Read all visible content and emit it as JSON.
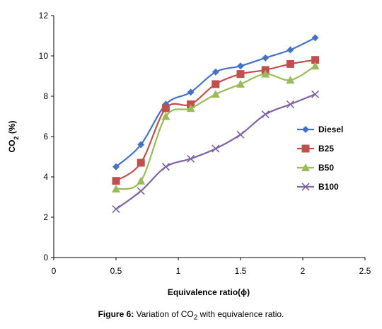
{
  "chart_data": {
    "type": "line",
    "xlabel": "Equivalence ratio(ϕ)",
    "ylabel_main": "CO",
    "ylabel_sub": "2",
    "ylabel_tail": " (%)",
    "xlim": [
      0,
      2.5
    ],
    "ylim": [
      0,
      12
    ],
    "x_ticks": [
      "0",
      "0.5",
      "1",
      "1.5",
      "2",
      "2.5"
    ],
    "y_ticks": [
      "0",
      "2",
      "4",
      "6",
      "8",
      "10",
      "12"
    ],
    "x": [
      0.5,
      0.7,
      0.9,
      1.1,
      1.3,
      1.5,
      1.7,
      1.9,
      2.1
    ],
    "grid": false,
    "legend_position": "right",
    "series": [
      {
        "name": "Diesel",
        "color": "#4472C4",
        "marker": "diamond",
        "values": [
          4.5,
          5.6,
          7.6,
          8.2,
          9.2,
          9.5,
          9.9,
          10.3,
          10.9
        ]
      },
      {
        "name": "B25",
        "color": "#C0504D",
        "marker": "square",
        "values": [
          3.8,
          4.7,
          7.4,
          7.6,
          8.6,
          9.1,
          9.3,
          9.6,
          9.8
        ]
      },
      {
        "name": "B50",
        "color": "#9BBB59",
        "marker": "triangle",
        "values": [
          3.4,
          3.8,
          7.0,
          7.4,
          8.1,
          8.6,
          9.1,
          8.8,
          9.5
        ]
      },
      {
        "name": "B100",
        "color": "#8064A2",
        "marker": "cross",
        "values": [
          2.4,
          3.3,
          4.5,
          4.9,
          5.4,
          6.1,
          7.1,
          7.6,
          8.1
        ]
      }
    ]
  },
  "caption": {
    "label": "Figure 6:",
    "text_before": " Variation of CO",
    "text_sub": "2",
    "text_after": " with equivalence ratio."
  }
}
